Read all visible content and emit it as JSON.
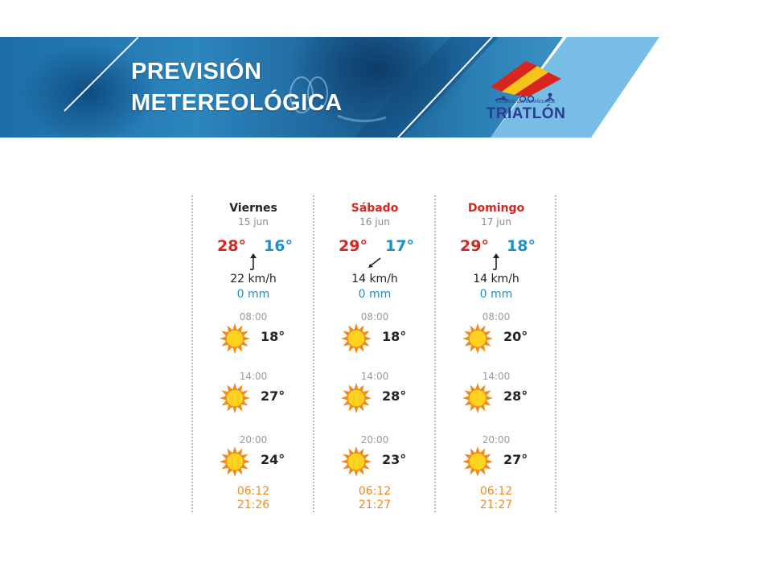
{
  "header": {
    "title_line1": "PREVISIÓN",
    "title_line2": "METEREOLÓGICA"
  },
  "logo": {
    "name": "TRIATLÓN",
    "federation": "FEDERACIÓN ESPAÑOLA DE"
  },
  "colors": {
    "banner_blue": "#2c85bd",
    "max_temp": "#d8261f",
    "min_temp": "#1c8fd1",
    "sun_times": "#f08a1c",
    "sun_fill": "#ffd21f",
    "sun_ray": "#f08a1c"
  },
  "forecast": [
    {
      "day": "Viernes",
      "date": "15 jun",
      "weekend": false,
      "max": "28°",
      "min": "16°",
      "wind_icon": "wind-arrow-up-icon",
      "wind": "22 km/h",
      "rain": "0 mm",
      "slots": [
        {
          "time": "08:00",
          "icon": "sun-icon",
          "temp": "18°"
        },
        {
          "time": "14:00",
          "icon": "sun-icon",
          "temp": "27°"
        },
        {
          "time": "20:00",
          "icon": "sun-icon",
          "temp": "24°"
        }
      ],
      "sunrise": "06:12",
      "sunset": "21:26"
    },
    {
      "day": "Sábado",
      "date": "16 jun",
      "weekend": true,
      "max": "29°",
      "min": "17°",
      "wind_icon": "wind-arrow-diagonal-icon",
      "wind": "14 km/h",
      "rain": "0 mm",
      "slots": [
        {
          "time": "08:00",
          "icon": "sun-icon",
          "temp": "18°"
        },
        {
          "time": "14:00",
          "icon": "sun-icon",
          "temp": "28°"
        },
        {
          "time": "20:00",
          "icon": "sun-icon",
          "temp": "23°"
        }
      ],
      "sunrise": "06:12",
      "sunset": "21:27"
    },
    {
      "day": "Domingo",
      "date": "17 jun",
      "weekend": true,
      "max": "29°",
      "min": "18°",
      "wind_icon": "wind-arrow-up-icon",
      "wind": "14 km/h",
      "rain": "0 mm",
      "slots": [
        {
          "time": "08:00",
          "icon": "sun-icon",
          "temp": "20°"
        },
        {
          "time": "14:00",
          "icon": "sun-icon",
          "temp": "28°"
        },
        {
          "time": "20:00",
          "icon": "sun-icon",
          "temp": "27°"
        }
      ],
      "sunrise": "06:12",
      "sunset": "21:27"
    }
  ]
}
